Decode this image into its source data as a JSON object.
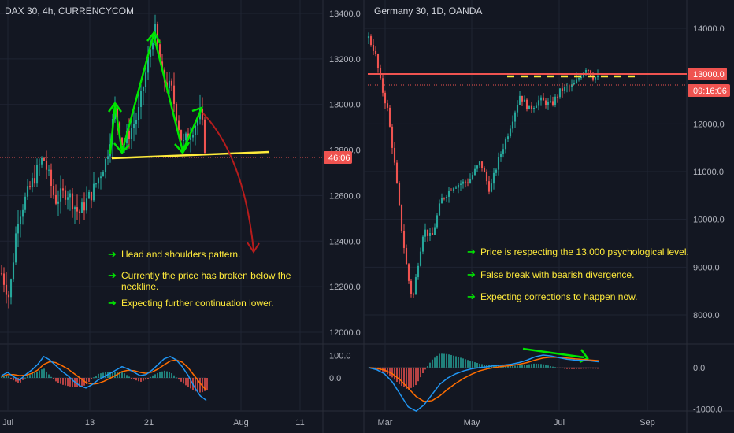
{
  "chart_data": [
    {
      "type": "candlestick",
      "title": "DAX 30, 4h, CURRENCYCOM",
      "y_ticks": [
        "13400.0",
        "13200.0",
        "13000.0",
        "12800.0",
        "12600.0",
        "12400.0",
        "12200.0",
        "12000.0"
      ],
      "x_ticks": [
        "Jul",
        "13",
        "21",
        "Aug",
        "11"
      ],
      "ylim": [
        11990,
        13440
      ],
      "price_badge": "46:06",
      "current_price_level": 12770,
      "indicator": {
        "name": "MACD",
        "y_ticks": [
          "100.0",
          "0.0"
        ],
        "macd": [
          10,
          25,
          5,
          -10,
          15,
          35,
          60,
          95,
          80,
          55,
          30,
          10,
          -15,
          -35,
          -45,
          -30,
          -10,
          5,
          20,
          35,
          50,
          40,
          25,
          10,
          15,
          35,
          60,
          85,
          95,
          80,
          50,
          10,
          -40,
          -80,
          -100
        ],
        "signal": [
          5,
          15,
          15,
          10,
          12,
          20,
          35,
          60,
          72,
          68,
          55,
          40,
          20,
          0,
          -20,
          -28,
          -25,
          -15,
          -2,
          12,
          28,
          34,
          32,
          25,
          20,
          26,
          40,
          58,
          75,
          80,
          70,
          45,
          10,
          -25,
          -55
        ],
        "ylim": [
          -140,
          140
        ]
      },
      "notes": [
        "Head and shoulders pattern.",
        "Currently the price has broken below the",
        "neckline.",
        "Expecting further continuation lower."
      ]
    },
    {
      "type": "candlestick",
      "title": "Germany 30, 1D, OANDA",
      "y_ticks": [
        "14000.0",
        "13000.0",
        "12000.0",
        "11000.0",
        "10000.0",
        "9000.0",
        "8000.0"
      ],
      "x_ticks": [
        "Mar",
        "May",
        "Jul",
        "Sep"
      ],
      "ylim": [
        7500,
        14300
      ],
      "price_badge": "13000.0",
      "time_badge": "09:16:06",
      "resistance_level": 13000,
      "current_price_level": 12780,
      "indicator": {
        "name": "MACD",
        "y_ticks": [
          "0.0",
          "-1000.0"
        ],
        "macd": [
          0,
          -50,
          -150,
          -350,
          -650,
          -950,
          -1050,
          -900,
          -650,
          -400,
          -250,
          -150,
          -80,
          -30,
          0,
          20,
          50,
          60,
          80,
          120,
          180,
          260,
          300,
          280,
          240,
          200,
          180,
          170,
          160,
          140
        ],
        "signal": [
          0,
          -20,
          -60,
          -150,
          -300,
          -500,
          -700,
          -820,
          -800,
          -680,
          -520,
          -380,
          -260,
          -160,
          -80,
          -30,
          5,
          30,
          50,
          80,
          120,
          180,
          230,
          250,
          245,
          230,
          210,
          195,
          180,
          165
        ],
        "ylim": [
          -1200,
          700
        ]
      },
      "notes": [
        "Price is respecting the 13,000 psychological level.",
        "False break with bearish divergence.",
        "Expecting corrections to happen now."
      ]
    }
  ],
  "colors": {
    "background": "#131722",
    "up_candle": "#26a69a",
    "down_candle": "#ef5350",
    "annotation_green": "#00e600",
    "neckline_yellow": "#ffeb3b",
    "projection_red": "#b71c1c",
    "macd_line": "#2196f3",
    "signal_line": "#ff6d00",
    "note_text": "#ffeb3b"
  }
}
